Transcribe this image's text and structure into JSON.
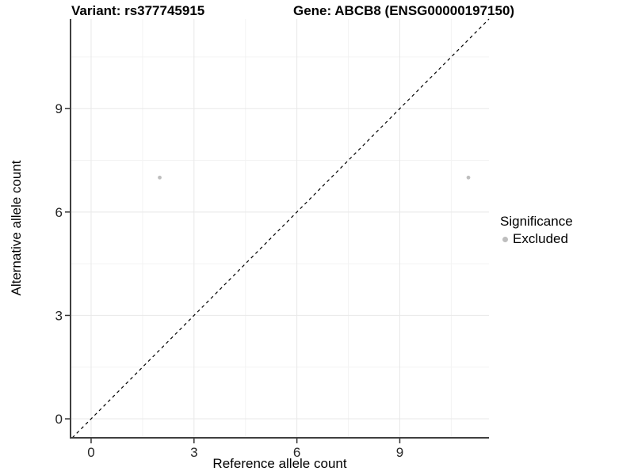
{
  "header": {
    "variant": "Variant: rs377745915",
    "gene": "Gene: ABCB8 (ENSG00000197150)"
  },
  "legend": {
    "title": "Significance",
    "items": [
      {
        "label": "Excluded",
        "marker": "circle-icon",
        "color": "#bebebe"
      }
    ]
  },
  "chart_data": {
    "type": "scatter",
    "title_left": "Variant: rs377745915",
    "title_right": "Gene: ABCB8 (ENSG00000197150)",
    "xlabel": "Reference allele count",
    "ylabel": "Alternative allele count",
    "xlim": [
      -0.6,
      11.6
    ],
    "ylim": [
      -0.55,
      11.6
    ],
    "x_ticks": [
      0,
      3,
      6,
      9
    ],
    "y_ticks": [
      0,
      3,
      6,
      9
    ],
    "x_minor_gridlines": [
      1.5,
      4.5,
      7.5,
      10.5
    ],
    "y_minor_gridlines": [
      1.5,
      4.5,
      7.5,
      10.5
    ],
    "grid": "major+minor",
    "legend_position": "right",
    "series": [
      {
        "name": "Excluded",
        "color": "#bebebe",
        "points": [
          {
            "x": 2,
            "y": 7
          },
          {
            "x": 11,
            "y": 7
          }
        ]
      }
    ],
    "reference_line": {
      "kind": "identity y=x",
      "style": "dashed",
      "color": "#000000"
    }
  },
  "colors": {
    "background": "#ffffff",
    "grid_major": "#e8e8e8",
    "grid_minor": "#f3f3f3",
    "axis_line": "#404040",
    "tick_mark": "#333333",
    "tick_text": "#262626",
    "point": "#bebebe"
  }
}
